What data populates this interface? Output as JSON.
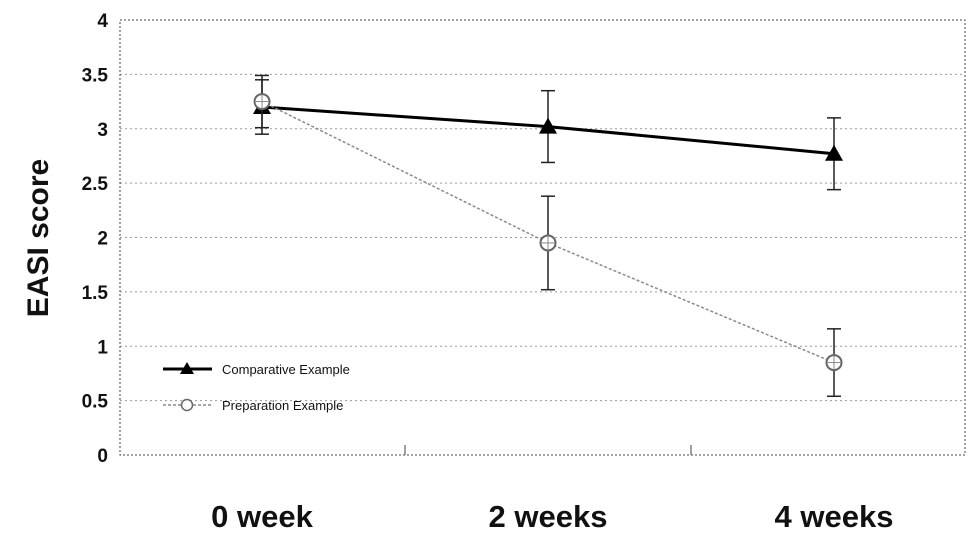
{
  "chart_data": {
    "type": "line",
    "title": "",
    "xlabel": "",
    "ylabel": "EASI score",
    "categories": [
      "0 week",
      "2 weeks",
      "4 weeks"
    ],
    "ylim": [
      0,
      4
    ],
    "yticks": [
      "0",
      "0.5",
      "1",
      "1.5",
      "2",
      "2.5",
      "3",
      "3.5",
      "4"
    ],
    "grid": true,
    "legend_position": "bottom-left",
    "series": [
      {
        "name": "Comparative Example",
        "marker": "triangle",
        "color": "#000000",
        "values": [
          3.2,
          3.02,
          2.77
        ],
        "error": [
          0.25,
          0.33,
          0.33
        ]
      },
      {
        "name": "Preparation Example",
        "marker": "circle",
        "color": "#8a8a8a",
        "values": [
          3.25,
          1.95,
          0.85
        ],
        "error": [
          0.24,
          0.43,
          0.31
        ]
      }
    ]
  }
}
